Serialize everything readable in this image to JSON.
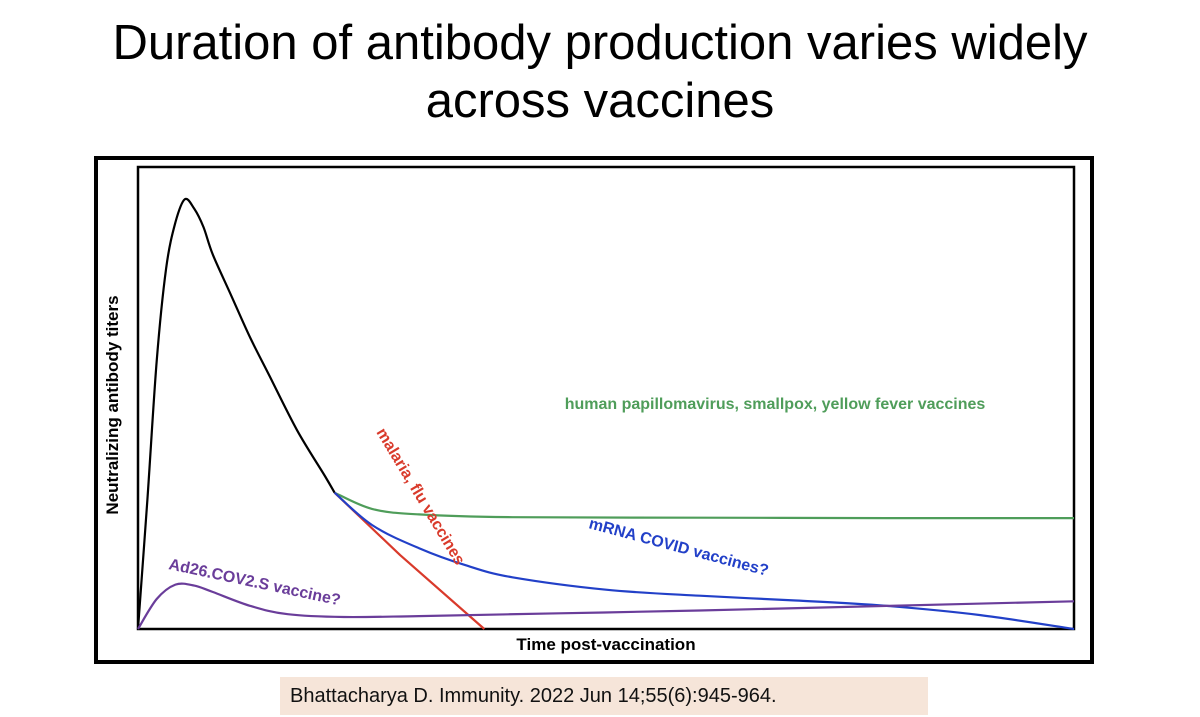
{
  "title": {
    "line1": "Duration of antibody production varies widely",
    "line2": "across vaccines"
  },
  "citation": "Bhattacharya D. Immunity. 2022 Jun 14;55(6):945-964.",
  "chart_data": {
    "type": "line",
    "title": "",
    "xlabel": "Time post-vaccination",
    "ylabel": "Neutralizing antibody titers",
    "xlim": [
      0,
      100
    ],
    "ylim": [
      0,
      100
    ],
    "grid": false,
    "legend": "none",
    "series": [
      {
        "name": "",
        "color": "#000000",
        "x": [
          0,
          1,
          2,
          3,
          4,
          5,
          6,
          7,
          8,
          10,
          12,
          14,
          17,
          20,
          21
        ],
        "y": [
          0,
          28,
          58,
          78,
          88,
          93,
          91,
          87,
          81,
          72,
          63,
          55,
          43,
          33,
          29.5
        ]
      },
      {
        "name": "human papillomavirus, smallpox, yellow fever vaccines",
        "color": "#4f9d5a",
        "x": [
          21,
          25,
          30,
          40,
          60,
          80,
          100
        ],
        "y": [
          29.5,
          26,
          24.8,
          24.2,
          24.1,
          24,
          24
        ]
      },
      {
        "name": "malaria, flu vaccines",
        "color": "#d93a2b",
        "x": [
          21,
          28,
          37
        ],
        "y": [
          29.5,
          16,
          0
        ]
      },
      {
        "name": "mRNA COVID vaccines?",
        "color": "#2240c8",
        "x": [
          21,
          25,
          30,
          35,
          40,
          50,
          60,
          70,
          80,
          90,
          100
        ],
        "y": [
          29.5,
          22.5,
          17.5,
          13.8,
          11.2,
          8.5,
          7.2,
          6.2,
          5,
          3,
          0
        ]
      },
      {
        "name": "Ad26.COV2.S vaccine?",
        "color": "#6a3d9a",
        "x": [
          0,
          2,
          4,
          6,
          8,
          12,
          16,
          22,
          30,
          45,
          60,
          80,
          100
        ],
        "y": [
          0,
          6.5,
          9.6,
          9.4,
          8,
          5,
          3.2,
          2.6,
          2.8,
          3.4,
          4,
          5,
          6
        ]
      }
    ],
    "annotations": [
      {
        "text": "human papillomavirus, smallpox, yellow fever vaccines",
        "color": "#4f9d5a"
      },
      {
        "text": "malaria, flu vaccines",
        "color": "#d93a2b"
      },
      {
        "text": "mRNA COVID vaccines?",
        "color": "#2240c8"
      },
      {
        "text": "Ad26.COV2.S vaccine?",
        "color": "#6a3d9a"
      }
    ]
  }
}
